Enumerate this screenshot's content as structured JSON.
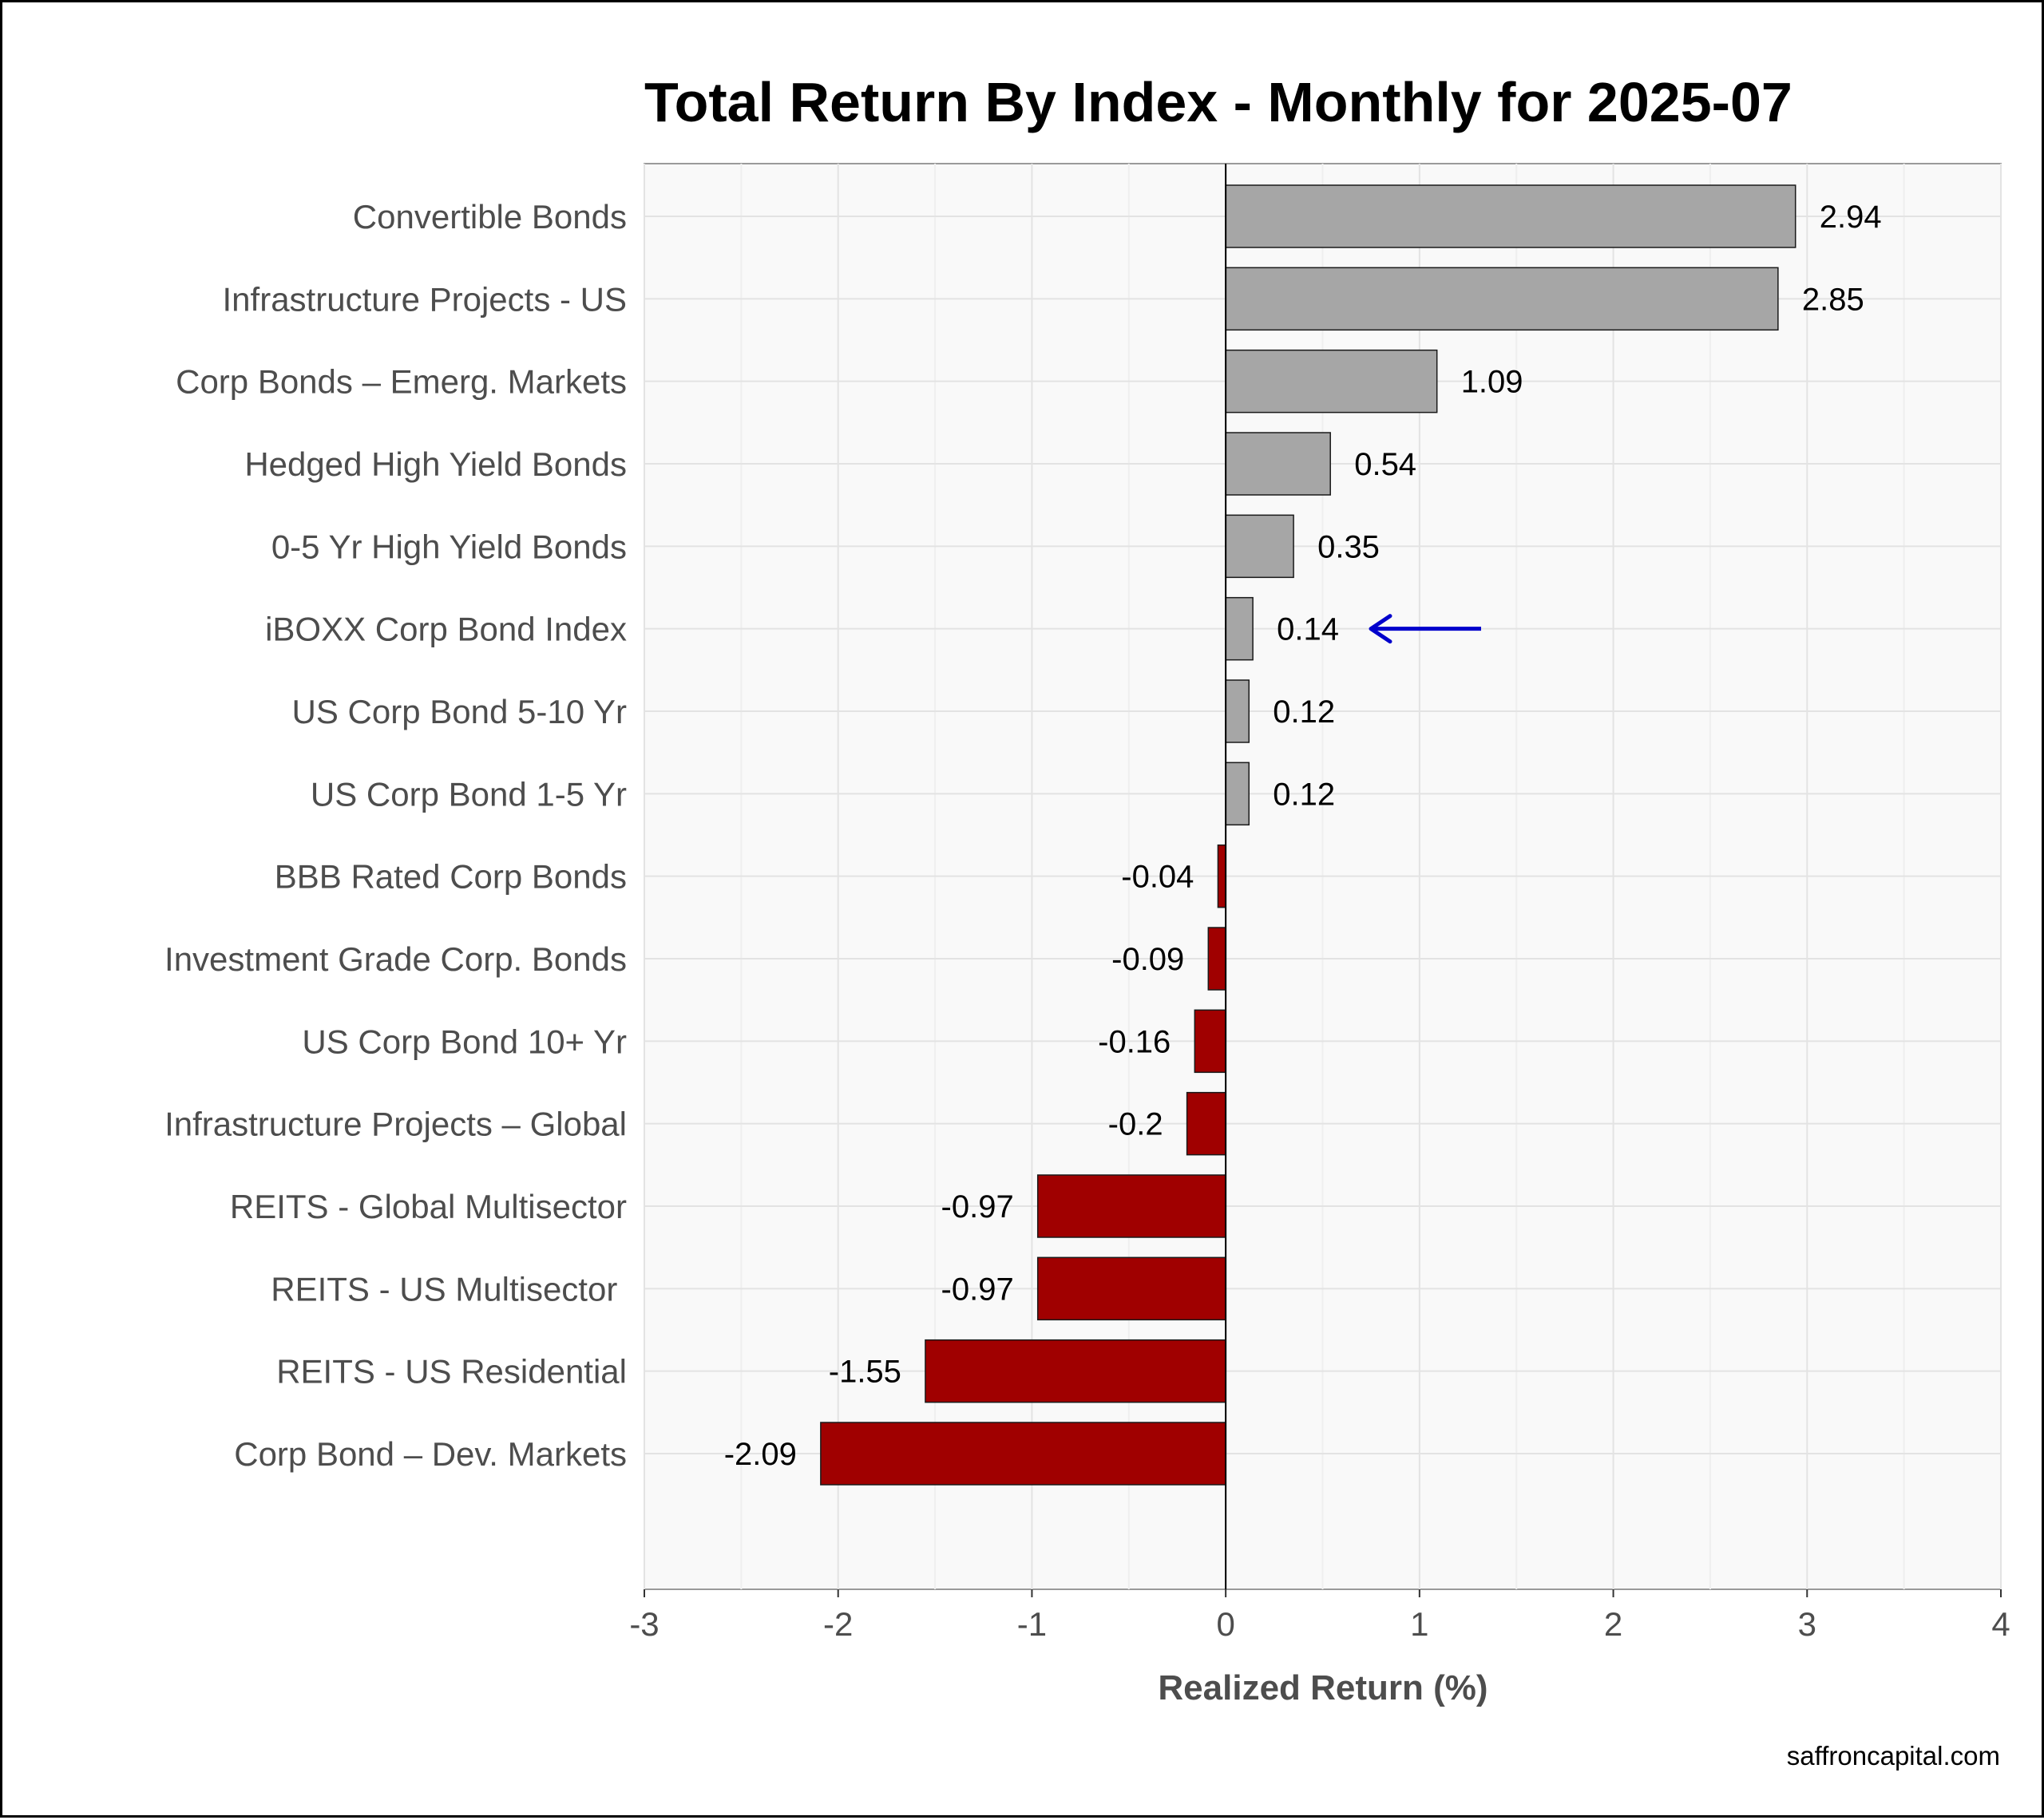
{
  "chart_data": {
    "type": "bar",
    "orientation": "horizontal",
    "title": "Total Return By Index - Monthly for 2025-07",
    "xlabel": "Realized Return (%)",
    "ylabel": "",
    "xlim": [
      -3,
      4
    ],
    "x_ticks": [
      -3,
      -2,
      -1,
      0,
      1,
      2,
      3,
      4
    ],
    "grid": true,
    "categories": [
      "Convertible Bonds",
      "Infrastructure Projects - US",
      "Corp Bonds – Emerg. Markets",
      "Hedged High Yield Bonds",
      "0-5 Yr High Yield Bonds",
      "iBOXX Corp Bond Index",
      "US Corp Bond 5-10 Yr",
      "US Corp Bond 1-5 Yr",
      "BBB Rated Corp Bonds",
      "Investment Grade Corp. Bonds",
      "US Corp Bond 10+ Yr",
      "Infrastructure Projects – Global",
      "REITS - Global Multisector",
      "REITS - US Multisector ",
      "REITS - US Residential",
      "Corp Bond – Dev. Markets"
    ],
    "values": [
      2.94,
      2.85,
      1.09,
      0.54,
      0.35,
      0.14,
      0.12,
      0.12,
      -0.04,
      -0.09,
      -0.16,
      -0.2,
      -0.97,
      -0.97,
      -1.55,
      -2.09
    ],
    "value_labels": [
      "2.94",
      "2.85",
      "1.09",
      "0.54",
      "0.35",
      "0.14",
      "0.12",
      "0.12",
      "-0.04",
      "-0.09",
      "-0.16",
      "-0.2",
      "-0.97",
      "-0.97",
      "-1.55",
      "-2.09"
    ],
    "highlight_category": "iBOXX Corp Bond Index",
    "annotation": "arrow pointing left at highlighted bar",
    "colors": {
      "positive": "#a6a6a6",
      "negative": "#a00000",
      "highlight_text": "#0000ff",
      "arrow": "#0000cc",
      "panel_bg": "#f9f9f9",
      "grid": "#e3e3e3"
    }
  },
  "footer": {
    "source": "saffroncapital.com"
  }
}
